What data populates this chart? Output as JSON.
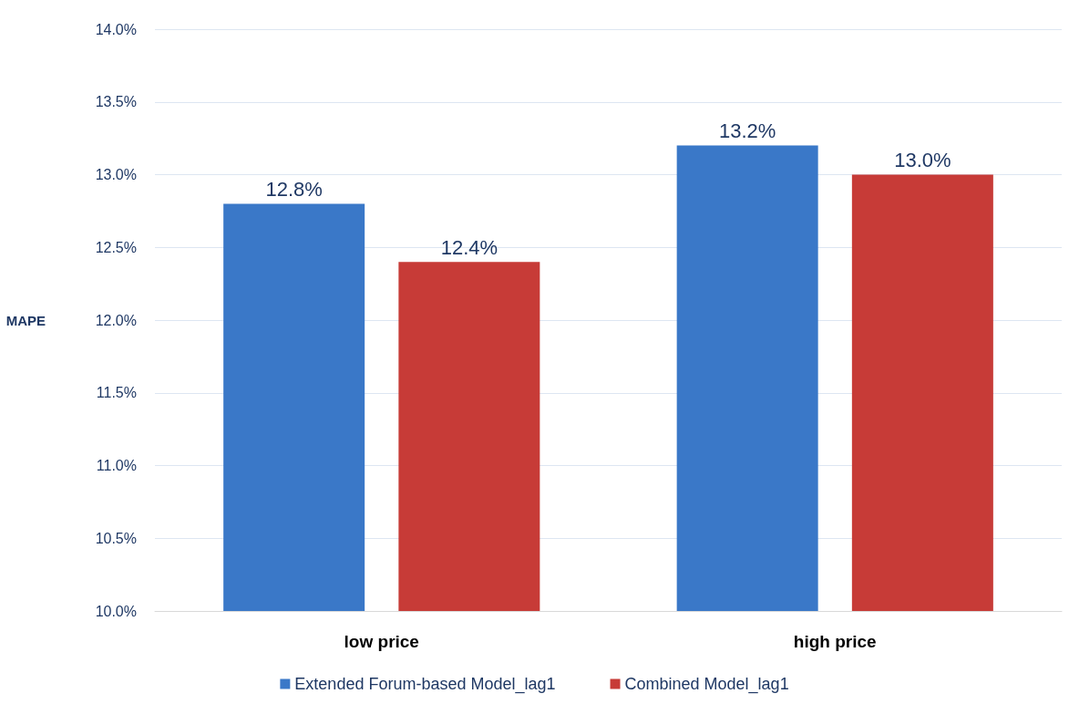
{
  "chart_data": {
    "type": "bar",
    "ylabel": "MAPE",
    "categories": [
      "low price",
      "high price"
    ],
    "series": [
      {
        "name": "Extended Forum-based Model_lag1",
        "color": "#3a78c8",
        "values": [
          12.8,
          13.2
        ],
        "value_labels": [
          "12.8%",
          "13.2%"
        ]
      },
      {
        "name": "Combined Model_lag1",
        "color": "#c73b37",
        "values": [
          12.4,
          13.0
        ],
        "value_labels": [
          "12.4%",
          "13.0%"
        ]
      }
    ],
    "ylim": [
      10,
      14
    ],
    "yticks": [
      {
        "value": 10,
        "label": "10.0%"
      },
      {
        "value": 10.5,
        "label": "10.5%"
      },
      {
        "value": 11,
        "label": "11.0%"
      },
      {
        "value": 11.5,
        "label": "11.5%"
      },
      {
        "value": 12,
        "label": "12.0%"
      },
      {
        "value": 12.5,
        "label": "12.5%"
      },
      {
        "value": 13,
        "label": "13.0%"
      },
      {
        "value": 13.5,
        "label": "13.5%"
      },
      {
        "value": 14,
        "label": "14.0%"
      }
    ],
    "grid": "y",
    "legend": "bottom"
  }
}
